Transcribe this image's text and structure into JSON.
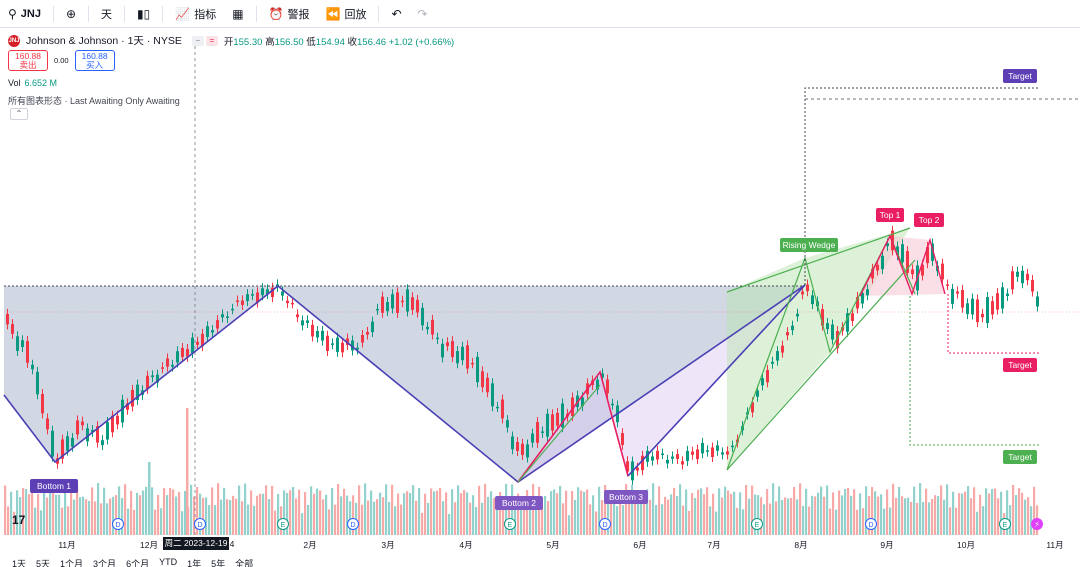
{
  "toolbar": {
    "symbol": "JNJ",
    "add_icon": "plus-circle-icon",
    "interval": "天",
    "chart_type_icon": "candles-icon",
    "indicators_label": "指标",
    "layouts_icon": "grid-icon",
    "alert_label": "警报",
    "replay_label": "回放",
    "undo_icon": "undo-icon",
    "redo_icon": "redo-icon"
  },
  "legend": {
    "title": "Johnson & Johnson · 1天 · NYSE",
    "open_label": "开",
    "open": "155.30",
    "high_label": "高",
    "high": "156.50",
    "low_label": "低",
    "low": "154.94",
    "close_label": "收",
    "close": "156.46",
    "change": "+1.02 (+0.66%)"
  },
  "trade": {
    "sell_price": "160.88",
    "sell_label": "卖出",
    "spread": "0.00",
    "buy_price": "160.88",
    "buy_label": "买入"
  },
  "volume": {
    "label": "Vol",
    "value": "6.652 M"
  },
  "patterns_text": "所有图表形态 · Last Awaiting Only Awaiting",
  "collapse_icon": "chevron-up-icon",
  "annotations": {
    "bottom1": "Bottom 1",
    "bottom2": "Bottom 2",
    "bottom3": "Bottom 3",
    "rising_wedge": "Rising Wedge",
    "top1": "Top 1",
    "top2": "Top 2",
    "target": "Target"
  },
  "event_markers": {
    "dividend": "D",
    "earnings": "E"
  },
  "time_axis": {
    "labels": [
      "11月",
      "12月",
      "2月",
      "3月",
      "4月",
      "5月",
      "6月",
      "7月",
      "8月",
      "9月",
      "10月",
      "11月"
    ],
    "cursor_date": "周二 2023-12-19",
    "cursor_partial": "4"
  },
  "ranges": [
    "1天",
    "5天",
    "1个月",
    "3个月",
    "6个月",
    "YTD",
    "1年",
    "5年",
    "全部"
  ],
  "colors": {
    "up": "#089981",
    "down": "#f23645",
    "volume_up": "#92d2cc",
    "volume_down": "#f7a9a7",
    "pattern_blue": "#4a3fb5",
    "pattern_green": "#4caf50",
    "pattern_pink": "#e91e63",
    "target_purple": "#5c3eb5"
  }
}
